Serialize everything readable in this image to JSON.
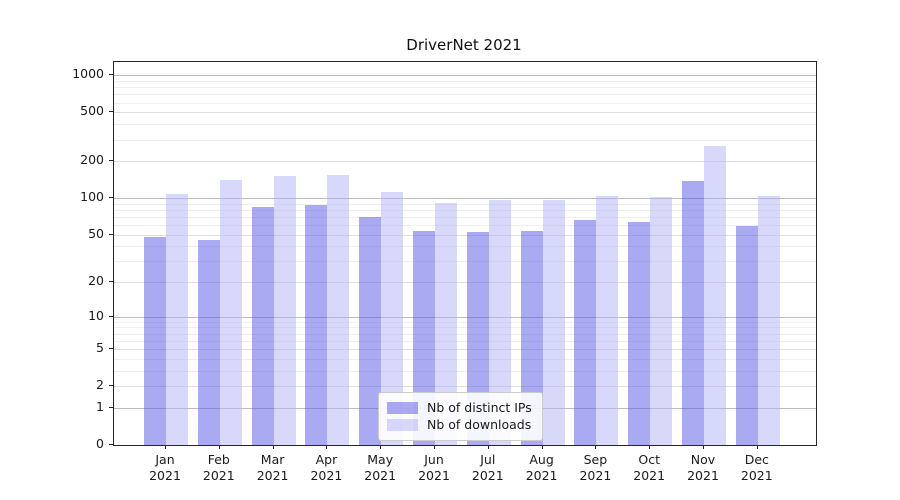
{
  "chart_data": {
    "type": "bar",
    "title": "DriverNet 2021",
    "categories": [
      "Jan",
      "Feb",
      "Mar",
      "Apr",
      "May",
      "Jun",
      "Jul",
      "Aug",
      "Sep",
      "Oct",
      "Nov",
      "Dec"
    ],
    "year_label": "2021",
    "series": [
      {
        "name": "Nb of distinct IPs",
        "color": "rgba(85,85,230,0.5)",
        "solid_color": "#aaaaf0",
        "values": [
          48,
          45,
          85,
          88,
          70,
          54,
          53,
          54,
          66,
          63,
          137,
          59
        ]
      },
      {
        "name": "Nb of downloads",
        "color": "rgba(178,178,246,0.5)",
        "solid_color": "#d8d8f9",
        "values": [
          107,
          140,
          151,
          154,
          111,
          91,
          96,
          97,
          104,
          101,
          264,
          104
        ]
      }
    ],
    "yscale": "symlog",
    "ylim": [
      0,
      1280
    ],
    "yticks": [
      0,
      1,
      2,
      5,
      10,
      20,
      50,
      100,
      200,
      500,
      1000
    ],
    "grid": "both",
    "legend_position": "lower center"
  }
}
